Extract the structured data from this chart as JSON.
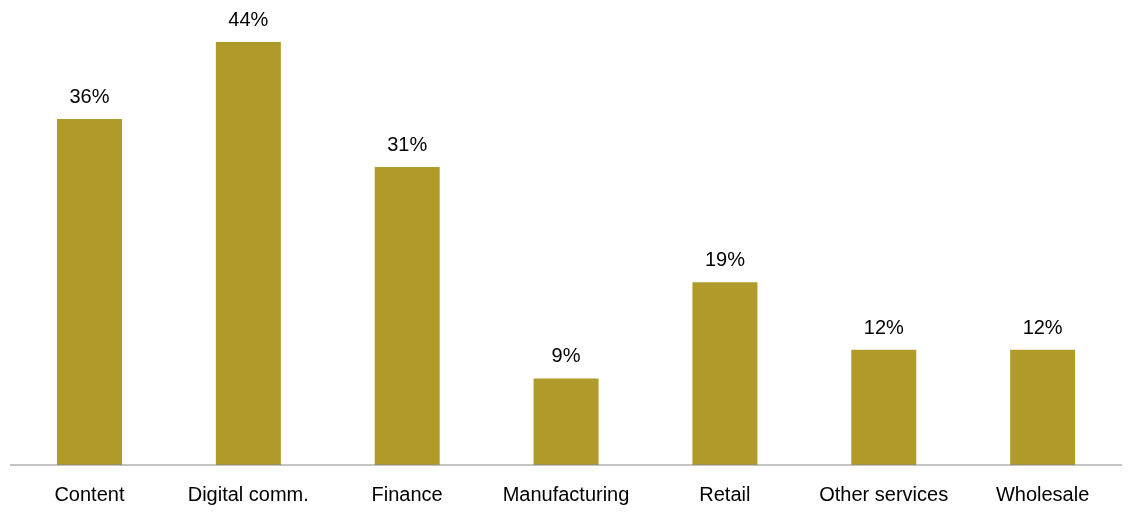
{
  "chart_data": {
    "type": "bar",
    "categories": [
      "Content",
      "Digital comm.",
      "Finance",
      "Manufacturing",
      "Retail",
      "Other services",
      "Wholesale"
    ],
    "values": [
      36,
      44,
      31,
      9,
      19,
      12,
      12
    ],
    "value_labels": [
      "36%",
      "44%",
      "31%",
      "9%",
      "19%",
      "12%",
      "12%"
    ],
    "color": "#b09a2a"
  }
}
